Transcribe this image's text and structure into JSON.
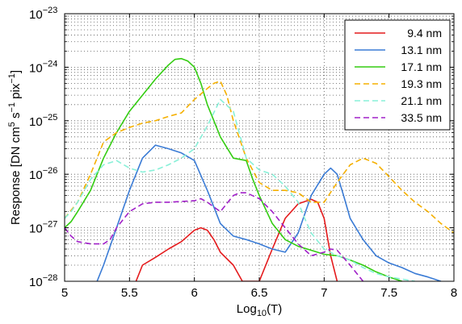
{
  "chart_data": {
    "type": "line",
    "xlabel": "Log",
    "xlabel_sub": "10",
    "xlabel_suffix": "(T)",
    "ylabel_parts": [
      "Response [DN cm",
      "5",
      " s",
      "−1",
      " pix",
      "−1",
      "]"
    ],
    "xlim": [
      5,
      8
    ],
    "y_scale": "log",
    "ylim": [
      1e-28,
      1e-23
    ],
    "grid": true,
    "legend_position": "top-right",
    "x_ticks": [
      {
        "value": 5,
        "label": "5"
      },
      {
        "value": 5.5,
        "label": "5.5"
      },
      {
        "value": 6,
        "label": "6"
      },
      {
        "value": 6.5,
        "label": "6.5"
      },
      {
        "value": 7,
        "label": "7"
      },
      {
        "value": 7.5,
        "label": "7.5"
      },
      {
        "value": 8,
        "label": "8"
      }
    ],
    "y_ticks": [
      {
        "exp": -23,
        "label_base": "10",
        "label_exp": "−23"
      },
      {
        "exp": -24,
        "label_base": "10",
        "label_exp": "−24"
      },
      {
        "exp": -25,
        "label_base": "10",
        "label_exp": "−25"
      },
      {
        "exp": -26,
        "label_base": "10",
        "label_exp": "−26"
      },
      {
        "exp": -27,
        "label_base": "10",
        "label_exp": "−27"
      },
      {
        "exp": -28,
        "label_base": "10",
        "label_exp": "−28"
      }
    ],
    "series": [
      {
        "name": "9.4 nm",
        "color": "#e41a1c",
        "dash": "solid",
        "x": [
          5.55,
          5.6,
          5.7,
          5.8,
          5.9,
          6.0,
          6.05,
          6.1,
          6.15,
          6.2,
          6.3,
          6.37,
          6.5,
          6.6,
          6.7,
          6.8,
          6.9,
          6.95,
          7.0,
          7.05,
          7.1
        ],
        "y": [
          1e-28,
          2e-28,
          2.8e-28,
          4e-28,
          5.5e-28,
          9e-28,
          1e-27,
          9e-28,
          6e-28,
          3.5e-28,
          2e-28,
          1e-28,
          1e-28,
          4e-28,
          1.5e-27,
          2.8e-27,
          3.4e-27,
          3e-27,
          1.5e-27,
          3e-28,
          1e-28
        ]
      },
      {
        "name": "13.1 nm",
        "color": "#3a7bd5",
        "dash": "solid",
        "x": [
          5.25,
          5.3,
          5.4,
          5.5,
          5.6,
          5.7,
          5.8,
          5.9,
          6.0,
          6.1,
          6.2,
          6.3,
          6.4,
          6.5,
          6.6,
          6.7,
          6.8,
          6.9,
          7.0,
          7.05,
          7.1,
          7.15,
          7.2,
          7.3,
          7.4,
          7.5,
          7.6,
          7.7,
          7.8,
          7.9
        ],
        "y": [
          1e-28,
          2e-28,
          1e-27,
          5e-27,
          2e-26,
          3.5e-26,
          3e-26,
          2.5e-26,
          1.8e-26,
          5e-27,
          1.2e-27,
          7e-28,
          6e-28,
          5e-28,
          4e-28,
          3.5e-28,
          8e-28,
          4e-27,
          1e-26,
          1.3e-26,
          1e-26,
          4e-27,
          1.5e-27,
          6e-28,
          3e-28,
          2.2e-28,
          1.8e-28,
          1.4e-28,
          1.2e-28,
          1e-28
        ]
      },
      {
        "name": "17.1 nm",
        "color": "#33cc11",
        "dash": "solid",
        "x": [
          5.0,
          5.05,
          5.1,
          5.2,
          5.3,
          5.4,
          5.5,
          5.6,
          5.7,
          5.8,
          5.85,
          5.9,
          5.95,
          6.0,
          6.05,
          6.1,
          6.15,
          6.2,
          6.3,
          6.4,
          6.45,
          6.5,
          6.6,
          6.7,
          6.8,
          6.9,
          7.0,
          7.1,
          7.2,
          7.3,
          7.4,
          7.5,
          7.6
        ],
        "y": [
          1e-27,
          1.3e-27,
          2e-27,
          5e-27,
          2e-26,
          6e-26,
          1.5e-25,
          3e-25,
          6e-25,
          1.1e-24,
          1.4e-24,
          1.45e-24,
          1.3e-24,
          1e-24,
          5e-25,
          2e-25,
          1e-25,
          5e-26,
          2e-26,
          1.8e-26,
          8e-27,
          4e-27,
          1.2e-27,
          6e-28,
          4.5e-28,
          3.8e-28,
          3.2e-28,
          3e-28,
          2.5e-28,
          2e-28,
          1.5e-28,
          1.2e-28,
          1e-28
        ]
      },
      {
        "name": "19.3 nm",
        "color": "#f5b000",
        "dash": "dashed",
        "x": [
          5.0,
          5.1,
          5.2,
          5.3,
          5.4,
          5.5,
          5.6,
          5.7,
          5.8,
          5.9,
          6.0,
          6.1,
          6.15,
          6.2,
          6.25,
          6.3,
          6.4,
          6.5,
          6.6,
          6.7,
          6.8,
          6.9,
          7.0,
          7.1,
          7.2,
          7.3,
          7.4,
          7.5,
          7.6,
          7.7,
          7.8,
          7.9,
          8.0
        ],
        "y": [
          1.5e-27,
          3e-27,
          1e-26,
          4e-26,
          6e-26,
          7.5e-26,
          9e-26,
          1e-25,
          1.2e-25,
          1.4e-25,
          2.5e-25,
          4e-25,
          5e-25,
          5.5e-25,
          3e-25,
          1e-25,
          2e-26,
          7e-27,
          5e-27,
          5e-27,
          4.5e-27,
          3e-27,
          3e-27,
          7e-27,
          1.5e-26,
          2e-26,
          1.6e-26,
          9e-27,
          5e-27,
          3e-27,
          2e-27,
          1.2e-27,
          8e-28
        ]
      },
      {
        "name": "21.1 nm",
        "color": "#88f0d8",
        "dash": "dashed",
        "x": [
          5.0,
          5.05,
          5.1,
          5.2,
          5.3,
          5.4,
          5.5,
          5.6,
          5.7,
          5.8,
          5.9,
          6.0,
          6.1,
          6.2,
          6.3,
          6.4,
          6.5,
          6.6,
          6.7,
          6.8,
          6.85,
          6.9,
          7.0,
          7.1,
          7.2,
          7.3,
          7.4,
          7.5,
          7.6,
          7.7
        ],
        "y": [
          1.5e-27,
          2e-27,
          3e-27,
          8e-27,
          1.5e-26,
          1.8e-26,
          1.3e-26,
          1.1e-26,
          1.2e-26,
          1.5e-26,
          2e-26,
          3e-26,
          8e-26,
          2.5e-25,
          1.5e-25,
          2e-26,
          1.2e-26,
          1e-26,
          6e-27,
          3e-27,
          1.5e-27,
          8e-28,
          4e-28,
          3e-28,
          2.5e-28,
          1.8e-28,
          1.4e-28,
          1.2e-28,
          1.1e-28,
          1e-28
        ]
      },
      {
        "name": "33.5 nm",
        "color": "#a020c8",
        "dash": "dashed",
        "x": [
          5.0,
          5.05,
          5.1,
          5.2,
          5.3,
          5.35,
          5.4,
          5.5,
          5.6,
          5.7,
          5.8,
          5.9,
          6.0,
          6.05,
          6.1,
          6.2,
          6.3,
          6.35,
          6.4,
          6.5,
          6.6,
          6.7,
          6.8,
          6.9,
          7.0,
          7.05,
          7.1,
          7.2,
          7.3
        ],
        "y": [
          1e-27,
          7e-28,
          5.5e-28,
          5e-28,
          5e-28,
          6e-28,
          1e-27,
          2e-27,
          2.8e-27,
          3e-27,
          3e-27,
          3.1e-27,
          3.2e-27,
          3.5e-27,
          3e-27,
          2e-27,
          4e-27,
          4.5e-27,
          4.5e-27,
          3.5e-27,
          2e-27,
          1e-27,
          5e-28,
          3e-28,
          3.5e-28,
          4e-28,
          3.8e-28,
          2e-28,
          1e-28
        ]
      }
    ]
  }
}
